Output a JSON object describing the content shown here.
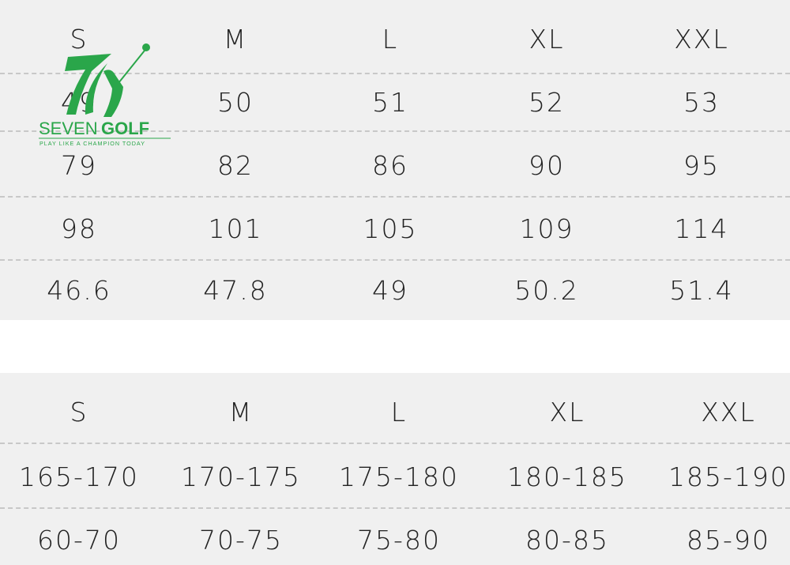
{
  "table1": {
    "headers": [
      "S",
      "M",
      "L",
      "XL",
      "XXL"
    ],
    "rows": [
      [
        "49",
        "50",
        "51",
        "52",
        "53"
      ],
      [
        "79",
        "82",
        "86",
        "90",
        "95"
      ],
      [
        "98",
        "101",
        "105",
        "109",
        "114"
      ],
      [
        "46.6",
        "47.8",
        "49",
        "50.2",
        "51.4"
      ]
    ]
  },
  "table2": {
    "headers": [
      "S",
      "M",
      "L",
      "XL",
      "XXL"
    ],
    "rows": [
      [
        "165-170",
        "170-175",
        "175-180",
        "180-185",
        "185-190"
      ],
      [
        "60-70",
        "70-75",
        "75-80",
        "80-85",
        "85-90"
      ]
    ]
  },
  "logo": {
    "brand_light": "SEVEN",
    "brand_bold": "GOLF",
    "tagline": "PLAY LIKE A CHAMPION TODAY",
    "color": "#2aa64a"
  }
}
